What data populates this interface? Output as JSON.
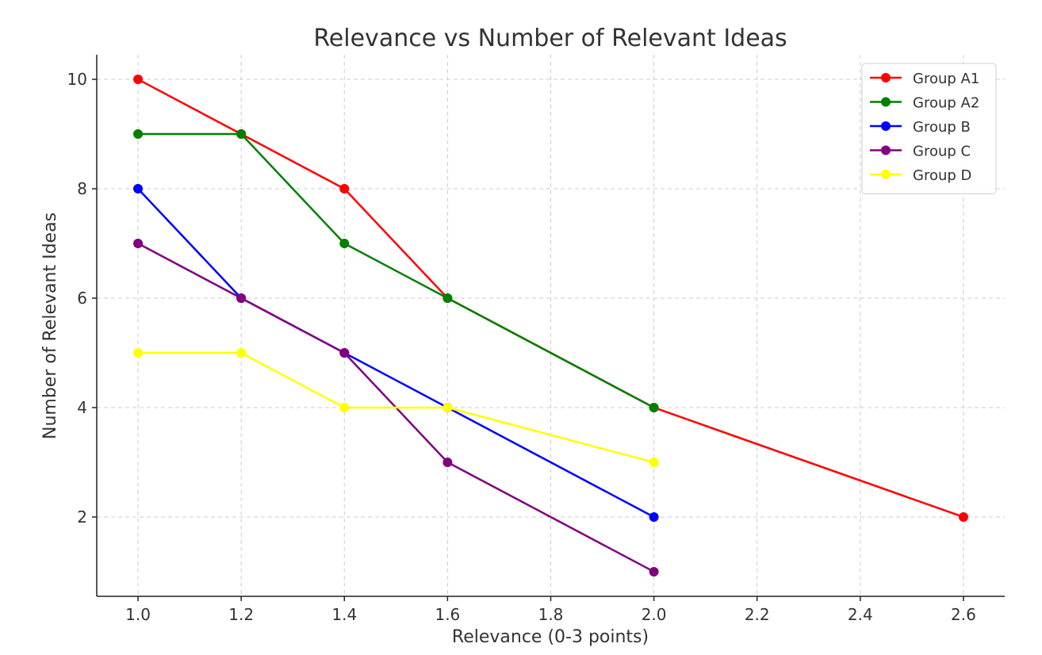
{
  "chart_data": {
    "type": "line",
    "title": "Relevance vs Number of Relevant Ideas",
    "xlabel": "Relevance (0-3 points)",
    "ylabel": "Number of Relevant Ideas",
    "xlim": [
      0.92,
      2.68
    ],
    "ylim": [
      0.55,
      10.45
    ],
    "xticks": [
      1.0,
      1.2,
      1.4,
      1.6,
      1.8,
      2.0,
      2.2,
      2.4,
      2.6
    ],
    "xtick_labels": [
      "1.0",
      "1.2",
      "1.4",
      "1.6",
      "1.8",
      "2.0",
      "2.2",
      "2.4",
      "2.6"
    ],
    "yticks": [
      2,
      4,
      6,
      8,
      10
    ],
    "ytick_labels": [
      "2",
      "4",
      "6",
      "8",
      "10"
    ],
    "grid": true,
    "legend_position": "top-right",
    "series": [
      {
        "name": "Group A1",
        "color": "#ff0000",
        "x": [
          1.0,
          1.2,
          1.4,
          1.6,
          2.0,
          2.6
        ],
        "y": [
          10,
          9,
          8,
          6,
          4,
          2
        ]
      },
      {
        "name": "Group A2",
        "color": "#008000",
        "x": [
          1.0,
          1.2,
          1.4,
          1.6,
          2.0
        ],
        "y": [
          9,
          9,
          7,
          6,
          4
        ]
      },
      {
        "name": "Group B",
        "color": "#0000ff",
        "x": [
          1.0,
          1.2,
          1.4,
          1.6,
          2.0
        ],
        "y": [
          8,
          6,
          5,
          4,
          2
        ]
      },
      {
        "name": "Group C",
        "color": "#800080",
        "x": [
          1.0,
          1.2,
          1.4,
          1.6,
          2.0
        ],
        "y": [
          7,
          6,
          5,
          3,
          1
        ]
      },
      {
        "name": "Group D",
        "color": "#ffff00",
        "x": [
          1.0,
          1.2,
          1.4,
          1.6,
          2.0
        ],
        "y": [
          5,
          5,
          4,
          4,
          3
        ]
      }
    ]
  }
}
